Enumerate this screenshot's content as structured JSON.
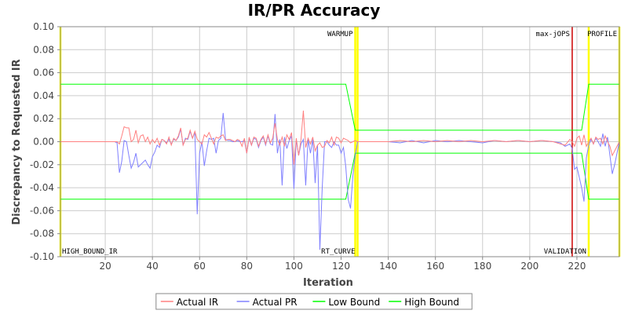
{
  "chart_data": {
    "type": "line",
    "title": "IR/PR Accuracy",
    "xlabel": "Iteration",
    "ylabel": "Discrepancy to Requested IR",
    "xlim": [
      1,
      238
    ],
    "ylim": [
      -0.1,
      0.1
    ],
    "xticks": [
      20,
      40,
      60,
      80,
      100,
      120,
      140,
      160,
      180,
      200,
      220
    ],
    "yticks": [
      -0.1,
      -0.08,
      -0.06,
      -0.04,
      -0.02,
      0.0,
      0.02,
      0.04,
      0.06,
      0.08,
      0.1
    ],
    "ytick_labels": [
      "-0.10",
      "-0.08",
      "-0.06",
      "-0.04",
      "-0.02",
      "0.00",
      "0.02",
      "0.04",
      "0.06",
      "0.08",
      "0.10"
    ],
    "grid": true,
    "legend_position": "bottom",
    "markers": [
      {
        "label": "HIGH_BOUND_IR",
        "x": 1,
        "color": "#ffff00",
        "label_pos": "bottom"
      },
      {
        "label": "WARMUP",
        "x": 126,
        "color": "#ffff00",
        "label_pos": "top"
      },
      {
        "label": "RT_CURVE",
        "x": 127,
        "color": "#ffff00",
        "label_pos": "bottom"
      },
      {
        "label": "max-jOPS",
        "x": 218,
        "color": "#cc0000",
        "label_pos": "top"
      },
      {
        "label": "VALIDATION",
        "x": 225,
        "color": "#ffff00",
        "label_pos": "bottom"
      },
      {
        "label": "PROFILE",
        "x": 238,
        "color": "#ffff00",
        "label_pos": "top"
      }
    ],
    "series": [
      {
        "name": "Actual IR",
        "color": "#ff8080",
        "points": [
          [
            1,
            0
          ],
          [
            25,
            0
          ],
          [
            26,
            -0.002
          ],
          [
            27,
            0.005
          ],
          [
            28,
            0.013
          ],
          [
            29,
            0.012
          ],
          [
            30,
            0.012
          ],
          [
            31,
            0
          ],
          [
            32,
            0.002
          ],
          [
            33,
            0.01
          ],
          [
            34,
            -0.001
          ],
          [
            35,
            0.005
          ],
          [
            36,
            0.006
          ],
          [
            37,
            0
          ],
          [
            38,
            0.004
          ],
          [
            39,
            -0.002
          ],
          [
            40,
            0.002
          ],
          [
            41,
            -0.001
          ],
          [
            42,
            0.003
          ],
          [
            43,
            -0.003
          ],
          [
            44,
            0.002
          ],
          [
            45,
            0.001
          ],
          [
            46,
            -0.002
          ],
          [
            47,
            0.004
          ],
          [
            48,
            -0.003
          ],
          [
            49,
            0.003
          ],
          [
            50,
            0.001
          ],
          [
            51,
            0.005
          ],
          [
            52,
            0.012
          ],
          [
            53,
            -0.003
          ],
          [
            54,
            0.002
          ],
          [
            55,
            0.003
          ],
          [
            56,
            0.01
          ],
          [
            57,
            0.003
          ],
          [
            58,
            0.009
          ],
          [
            59,
            0.002
          ],
          [
            60,
            0
          ],
          [
            61,
            -0.002
          ],
          [
            62,
            0.006
          ],
          [
            63,
            0.004
          ],
          [
            64,
            0.008
          ],
          [
            65,
            0.003
          ],
          [
            66,
            -0.002
          ],
          [
            67,
            0.004
          ],
          [
            68,
            0.003
          ],
          [
            69,
            0.005
          ],
          [
            70,
            0.006
          ],
          [
            71,
            0.001
          ],
          [
            72,
            0.002
          ],
          [
            73,
            0.002
          ],
          [
            74,
            0.001
          ],
          [
            75,
            0
          ],
          [
            76,
            0.002
          ],
          [
            77,
            0.001
          ],
          [
            78,
            -0.004
          ],
          [
            79,
            0.003
          ],
          [
            80,
            -0.01
          ],
          [
            81,
            0.004
          ],
          [
            82,
            -0.003
          ],
          [
            83,
            0.004
          ],
          [
            84,
            0.003
          ],
          [
            85,
            -0.004
          ],
          [
            86,
            0.002
          ],
          [
            87,
            0.005
          ],
          [
            88,
            -0.002
          ],
          [
            89,
            0.006
          ],
          [
            90,
            -0.001
          ],
          [
            91,
            0.003
          ],
          [
            92,
            0.016
          ],
          [
            93,
            0.002
          ],
          [
            94,
            -0.003
          ],
          [
            95,
            0.004
          ],
          [
            96,
            -0.004
          ],
          [
            97,
            0.006
          ],
          [
            98,
            0.002
          ],
          [
            99,
            0.008
          ],
          [
            100,
            -0.02
          ],
          [
            101,
            0.003
          ],
          [
            102,
            -0.012
          ],
          [
            103,
            0.002
          ],
          [
            104,
            0.027
          ],
          [
            105,
            -0.005
          ],
          [
            106,
            0.003
          ],
          [
            107,
            -0.002
          ],
          [
            108,
            0.004
          ],
          [
            109,
            -0.008
          ],
          [
            110,
            -0.003
          ],
          [
            111,
            -0.001
          ],
          [
            112,
            -0.005
          ],
          [
            113,
            -0.004
          ],
          [
            114,
            0.001
          ],
          [
            115,
            -0.001
          ],
          [
            116,
            0.004
          ],
          [
            117,
            -0.003
          ],
          [
            118,
            0.004
          ],
          [
            119,
            0.003
          ],
          [
            120,
            -0.001
          ],
          [
            121,
            0.003
          ],
          [
            122,
            0.002
          ],
          [
            123,
            0.001
          ],
          [
            124,
            -0.001
          ],
          [
            125,
            0
          ],
          [
            126,
            0.001
          ],
          [
            127,
            0
          ],
          [
            140,
            0
          ],
          [
            145,
            0.001
          ],
          [
            150,
            0
          ],
          [
            155,
            0.001
          ],
          [
            160,
            0
          ],
          [
            165,
            0.001
          ],
          [
            170,
            0
          ],
          [
            175,
            0.001
          ],
          [
            180,
            0
          ],
          [
            185,
            0.001
          ],
          [
            190,
            0
          ],
          [
            195,
            0.001
          ],
          [
            200,
            0
          ],
          [
            205,
            0.001
          ],
          [
            210,
            0
          ],
          [
            213,
            -0.002
          ],
          [
            215,
            -0.003
          ],
          [
            217,
            0.002
          ],
          [
            218,
            0
          ],
          [
            219,
            -0.004
          ],
          [
            220,
            0.003
          ],
          [
            221,
            0.005
          ],
          [
            222,
            -0.003
          ],
          [
            223,
            0.006
          ],
          [
            224,
            -0.004
          ],
          [
            225,
            0
          ],
          [
            226,
            0.003
          ],
          [
            227,
            -0.002
          ],
          [
            228,
            0.004
          ],
          [
            229,
            0.002
          ],
          [
            230,
            0.003
          ],
          [
            231,
            -0.002
          ],
          [
            232,
            0.005
          ],
          [
            233,
            0
          ],
          [
            234,
            -0.004
          ],
          [
            235,
            -0.012
          ],
          [
            236,
            -0.008
          ],
          [
            237,
            -0.004
          ],
          [
            238,
            0
          ]
        ]
      },
      {
        "name": "Actual PR",
        "color": "#8080ff",
        "points": [
          [
            1,
            0
          ],
          [
            24,
            0
          ],
          [
            25,
            -0.001
          ],
          [
            26,
            -0.027
          ],
          [
            27,
            -0.017
          ],
          [
            28,
            0.001
          ],
          [
            29,
            0
          ],
          [
            30,
            -0.012
          ],
          [
            31,
            -0.023
          ],
          [
            32,
            -0.018
          ],
          [
            33,
            -0.01
          ],
          [
            34,
            -0.022
          ],
          [
            35,
            -0.02
          ],
          [
            36,
            -0.018
          ],
          [
            37,
            -0.016
          ],
          [
            38,
            -0.02
          ],
          [
            39,
            -0.023
          ],
          [
            40,
            -0.013
          ],
          [
            41,
            -0.009
          ],
          [
            42,
            -0.003
          ],
          [
            43,
            -0.005
          ],
          [
            44,
            0.002
          ],
          [
            45,
            0.001
          ],
          [
            46,
            -0.001
          ],
          [
            47,
            0.002
          ],
          [
            48,
            -0.002
          ],
          [
            49,
            0.002
          ],
          [
            50,
            0.001
          ],
          [
            51,
            0.004
          ],
          [
            52,
            0.011
          ],
          [
            53,
            -0.003
          ],
          [
            54,
            0.003
          ],
          [
            55,
            0.002
          ],
          [
            56,
            0.009
          ],
          [
            57,
            0.003
          ],
          [
            58,
            0.008
          ],
          [
            59,
            -0.063
          ],
          [
            60,
            -0.01
          ],
          [
            61,
            0
          ],
          [
            62,
            -0.021
          ],
          [
            63,
            -0.008
          ],
          [
            64,
            0.003
          ],
          [
            65,
            0.002
          ],
          [
            66,
            0.003
          ],
          [
            67,
            -0.01
          ],
          [
            68,
            0.001
          ],
          [
            69,
            0.003
          ],
          [
            70,
            0.025
          ],
          [
            71,
            0.002
          ],
          [
            72,
            0.001
          ],
          [
            73,
            0.001
          ],
          [
            74,
            0
          ],
          [
            75,
            0
          ],
          [
            76,
            0.001
          ],
          [
            77,
            0
          ],
          [
            78,
            0
          ],
          [
            79,
            0.001
          ],
          [
            80,
            -0.01
          ],
          [
            81,
            0.003
          ],
          [
            82,
            -0.003
          ],
          [
            83,
            0.003
          ],
          [
            84,
            0.002
          ],
          [
            85,
            -0.005
          ],
          [
            86,
            0.001
          ],
          [
            87,
            0.004
          ],
          [
            88,
            -0.003
          ],
          [
            89,
            0.005
          ],
          [
            90,
            -0.002
          ],
          [
            91,
            -0.003
          ],
          [
            92,
            0.024
          ],
          [
            93,
            -0.01
          ],
          [
            94,
            0.002
          ],
          [
            95,
            -0.038
          ],
          [
            96,
            0.004
          ],
          [
            97,
            -0.006
          ],
          [
            98,
            0.001
          ],
          [
            99,
            0.005
          ],
          [
            100,
            -0.041
          ],
          [
            101,
            0.002
          ],
          [
            102,
            -0.012
          ],
          [
            103,
            -0.002
          ],
          [
            104,
            0.002
          ],
          [
            105,
            -0.038
          ],
          [
            106,
            0.002
          ],
          [
            107,
            -0.01
          ],
          [
            108,
            0.002
          ],
          [
            109,
            -0.036
          ],
          [
            110,
            -0.003
          ],
          [
            111,
            -0.094
          ],
          [
            112,
            -0.04
          ],
          [
            113,
            0
          ],
          [
            114,
            0
          ],
          [
            115,
            -0.003
          ],
          [
            116,
            -0.005
          ],
          [
            117,
            0
          ],
          [
            118,
            -0.003
          ],
          [
            119,
            -0.003
          ],
          [
            120,
            -0.01
          ],
          [
            121,
            -0.005
          ],
          [
            122,
            -0.022
          ],
          [
            123,
            -0.05
          ],
          [
            124,
            -0.058
          ],
          [
            125,
            -0.03
          ],
          [
            126,
            -0.012
          ],
          [
            127,
            0
          ],
          [
            140,
            0
          ],
          [
            145,
            -0.001
          ],
          [
            150,
            0.001
          ],
          [
            155,
            -0.001
          ],
          [
            160,
            0.001
          ],
          [
            165,
            0
          ],
          [
            170,
            0.001
          ],
          [
            175,
            0
          ],
          [
            180,
            -0.001
          ],
          [
            185,
            0.001
          ],
          [
            190,
            0
          ],
          [
            195,
            0.001
          ],
          [
            200,
            0
          ],
          [
            205,
            0.001
          ],
          [
            210,
            0
          ],
          [
            213,
            -0.001
          ],
          [
            215,
            -0.004
          ],
          [
            217,
            -0.002
          ],
          [
            218,
            -0.006
          ],
          [
            219,
            -0.024
          ],
          [
            220,
            -0.022
          ],
          [
            221,
            -0.031
          ],
          [
            222,
            -0.04
          ],
          [
            223,
            -0.052
          ],
          [
            224,
            -0.014
          ],
          [
            225,
            -0.003
          ],
          [
            226,
            0.002
          ],
          [
            227,
            -0.002
          ],
          [
            228,
            0.003
          ],
          [
            229,
            0
          ],
          [
            230,
            -0.004
          ],
          [
            231,
            0.007
          ],
          [
            232,
            -0.004
          ],
          [
            233,
            0.004
          ],
          [
            234,
            -0.012
          ],
          [
            235,
            -0.028
          ],
          [
            236,
            -0.02
          ],
          [
            237,
            -0.01
          ],
          [
            238,
            0
          ]
        ]
      },
      {
        "name": "Low Bound",
        "color": "#00ff00",
        "points": [
          [
            1,
            -0.05
          ],
          [
            122,
            -0.05
          ],
          [
            126,
            -0.01
          ],
          [
            218,
            -0.01
          ],
          [
            222,
            -0.01
          ],
          [
            225,
            -0.05
          ],
          [
            238,
            -0.05
          ]
        ]
      },
      {
        "name": "High Bound",
        "color": "#00ff00",
        "points": [
          [
            1,
            0.05
          ],
          [
            122,
            0.05
          ],
          [
            126,
            0.01
          ],
          [
            218,
            0.01
          ],
          [
            222,
            0.01
          ],
          [
            225,
            0.05
          ],
          [
            238,
            0.05
          ]
        ]
      }
    ]
  }
}
